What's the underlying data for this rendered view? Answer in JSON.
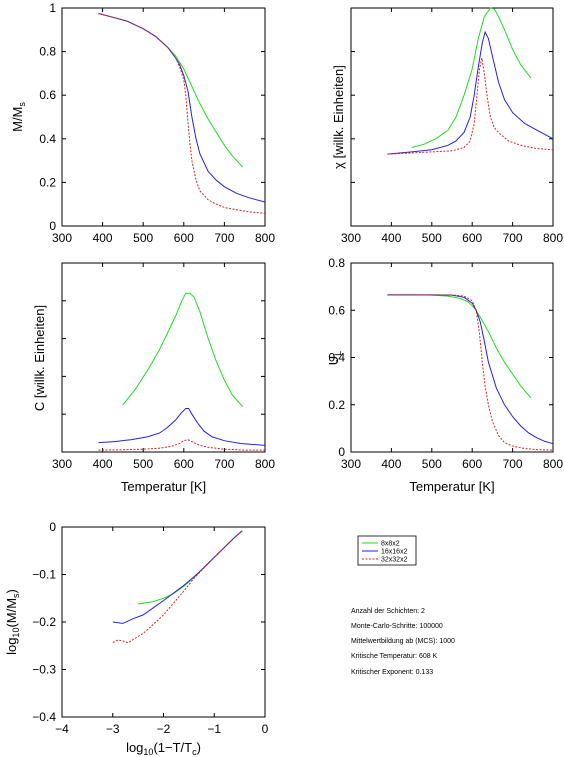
{
  "legend": {
    "entries": [
      {
        "label": "8x8x2",
        "color": "#22dd22",
        "dash": "none"
      },
      {
        "label": "16x16x2",
        "color": "#2222dd",
        "dash": "none"
      },
      {
        "label": "32x32x2",
        "color": "#dd2222",
        "dash": "2,1.5"
      }
    ]
  },
  "info": [
    "Anzahl der Schichten: 2",
    "Monte-Carlo-Schritte: 100000",
    "Mittelwertbildung ab (MCS): 1000",
    "Kritische Temperatur: 608 K",
    "Kritischer Exponent: 0.133"
  ],
  "chart_data": [
    {
      "type": "line",
      "ylabel": "M/M",
      "ylabel_sub": "s",
      "xlabel": "",
      "xlim": [
        300,
        800
      ],
      "ylim": [
        0,
        1
      ],
      "xticks": [
        300,
        400,
        500,
        600,
        700,
        800
      ],
      "yticks": [
        0,
        0.2,
        0.4,
        0.6,
        0.8,
        1
      ],
      "ytick_labels": [
        "0",
        "0.2",
        "0.4",
        "0.6",
        "0.8",
        "1"
      ],
      "series": [
        {
          "x": [
            390,
            420,
            460,
            500,
            530,
            560,
            580,
            600,
            620,
            640,
            660,
            680,
            700,
            720,
            745
          ],
          "y": [
            0.975,
            0.96,
            0.94,
            0.905,
            0.87,
            0.82,
            0.78,
            0.72,
            0.64,
            0.56,
            0.49,
            0.43,
            0.37,
            0.32,
            0.27
          ]
        },
        {
          "x": [
            390,
            420,
            460,
            500,
            530,
            560,
            580,
            590,
            600,
            610,
            620,
            630,
            640,
            660,
            680,
            700,
            730,
            760,
            800
          ],
          "y": [
            0.975,
            0.96,
            0.94,
            0.905,
            0.87,
            0.82,
            0.77,
            0.74,
            0.69,
            0.62,
            0.5,
            0.4,
            0.33,
            0.25,
            0.21,
            0.18,
            0.15,
            0.13,
            0.11
          ]
        },
        {
          "x": [
            390,
            420,
            460,
            500,
            530,
            560,
            580,
            590,
            600,
            605,
            610,
            615,
            620,
            630,
            640,
            660,
            680,
            700,
            730,
            760,
            800
          ],
          "y": [
            0.975,
            0.96,
            0.94,
            0.905,
            0.87,
            0.82,
            0.77,
            0.73,
            0.67,
            0.6,
            0.48,
            0.38,
            0.3,
            0.21,
            0.16,
            0.12,
            0.1,
            0.085,
            0.075,
            0.065,
            0.058
          ]
        }
      ]
    },
    {
      "type": "line",
      "ylabel": "χ [willk. Einheiten]",
      "xlabel": "",
      "xlim": [
        300,
        800
      ],
      "ylim": [
        0,
        1
      ],
      "xticks": [
        300,
        400,
        500,
        600,
        700,
        800
      ],
      "yticks": [
        0,
        0.2,
        0.4,
        0.6,
        0.8,
        1
      ],
      "ytick_labels": [
        "",
        "",
        "",
        "",
        "",
        ""
      ],
      "series": [
        {
          "x": [
            450,
            480,
            510,
            540,
            560,
            580,
            600,
            615,
            630,
            645,
            655,
            665,
            680,
            700,
            720,
            745
          ],
          "y": [
            0.36,
            0.375,
            0.4,
            0.44,
            0.5,
            0.6,
            0.72,
            0.86,
            0.96,
            1.0,
            0.995,
            0.96,
            0.9,
            0.81,
            0.74,
            0.68
          ]
        },
        {
          "x": [
            390,
            450,
            500,
            540,
            560,
            580,
            595,
            605,
            615,
            625,
            632,
            640,
            650,
            665,
            680,
            700,
            730,
            760,
            800
          ],
          "y": [
            0.33,
            0.34,
            0.35,
            0.37,
            0.39,
            0.43,
            0.5,
            0.6,
            0.73,
            0.84,
            0.89,
            0.86,
            0.78,
            0.66,
            0.58,
            0.52,
            0.47,
            0.44,
            0.4
          ]
        },
        {
          "x": [
            390,
            450,
            500,
            550,
            580,
            595,
            605,
            612,
            618,
            624,
            630,
            638,
            645,
            655,
            670,
            690,
            720,
            760,
            800
          ],
          "y": [
            0.33,
            0.335,
            0.34,
            0.345,
            0.36,
            0.39,
            0.47,
            0.6,
            0.72,
            0.77,
            0.7,
            0.58,
            0.5,
            0.45,
            0.42,
            0.39,
            0.37,
            0.355,
            0.35
          ]
        }
      ]
    },
    {
      "type": "line",
      "ylabel": "C [willk. Einheiten]",
      "xlabel": "Temperatur [K]",
      "xlim": [
        300,
        800
      ],
      "ylim": [
        0,
        1
      ],
      "xticks": [
        300,
        400,
        500,
        600,
        700,
        800
      ],
      "yticks": [
        0,
        0.2,
        0.4,
        0.6,
        0.8,
        1
      ],
      "ytick_labels": [
        "",
        "",
        "",
        "",
        "",
        ""
      ],
      "series": [
        {
          "x": [
            450,
            480,
            510,
            540,
            560,
            580,
            595,
            605,
            615,
            625,
            640,
            660,
            680,
            700,
            720,
            745
          ],
          "y": [
            0.25,
            0.33,
            0.43,
            0.54,
            0.63,
            0.72,
            0.8,
            0.84,
            0.84,
            0.82,
            0.74,
            0.6,
            0.48,
            0.38,
            0.3,
            0.24
          ]
        },
        {
          "x": [
            390,
            430,
            470,
            510,
            540,
            560,
            580,
            595,
            605,
            612,
            620,
            635,
            650,
            670,
            700,
            740,
            800
          ],
          "y": [
            0.05,
            0.055,
            0.065,
            0.08,
            0.1,
            0.13,
            0.17,
            0.21,
            0.23,
            0.23,
            0.2,
            0.15,
            0.11,
            0.08,
            0.06,
            0.045,
            0.035
          ]
        },
        {
          "x": [
            390,
            450,
            500,
            540,
            570,
            590,
            600,
            610,
            620,
            640,
            660,
            700,
            750,
            800
          ],
          "y": [
            0.01,
            0.012,
            0.015,
            0.02,
            0.03,
            0.045,
            0.06,
            0.065,
            0.055,
            0.035,
            0.025,
            0.015,
            0.01,
            0.01
          ]
        }
      ]
    },
    {
      "type": "line",
      "ylabel": "U",
      "ylabel_sub": "L",
      "xlabel": "Temperatur [K]",
      "xlim": [
        300,
        800
      ],
      "ylim": [
        0,
        0.8
      ],
      "xticks": [
        300,
        400,
        500,
        600,
        700,
        800
      ],
      "yticks": [
        0,
        0.2,
        0.4,
        0.6,
        0.8
      ],
      "ytick_labels": [
        "0",
        "0.2",
        "0.4",
        "0.6",
        "0.8"
      ],
      "series": [
        {
          "x": [
            390,
            450,
            500,
            540,
            570,
            590,
            605,
            620,
            640,
            660,
            680,
            700,
            720,
            745
          ],
          "y": [
            0.665,
            0.665,
            0.664,
            0.66,
            0.65,
            0.635,
            0.61,
            0.57,
            0.51,
            0.44,
            0.38,
            0.33,
            0.28,
            0.23
          ]
        },
        {
          "x": [
            390,
            450,
            500,
            550,
            580,
            600,
            610,
            620,
            630,
            640,
            660,
            680,
            700,
            720,
            740,
            760,
            780,
            800
          ],
          "y": [
            0.665,
            0.665,
            0.665,
            0.664,
            0.655,
            0.63,
            0.6,
            0.55,
            0.47,
            0.38,
            0.27,
            0.2,
            0.15,
            0.11,
            0.08,
            0.06,
            0.045,
            0.035
          ]
        },
        {
          "x": [
            390,
            450,
            500,
            550,
            580,
            600,
            610,
            618,
            625,
            632,
            640,
            650,
            665,
            680,
            700,
            730,
            760,
            800
          ],
          "y": [
            0.665,
            0.665,
            0.665,
            0.665,
            0.66,
            0.64,
            0.6,
            0.5,
            0.38,
            0.28,
            0.2,
            0.13,
            0.07,
            0.04,
            0.025,
            0.015,
            0.01,
            0.008
          ]
        }
      ]
    },
    {
      "type": "line",
      "ylabel": "log10(M/Ms)",
      "xlabel": "log10(1-T/Tc)",
      "xlim": [
        -4,
        0
      ],
      "ylim": [
        -0.4,
        0
      ],
      "xticks": [
        -4,
        -3,
        -2,
        -1,
        0
      ],
      "xtick_labels": [
        "−4",
        "−3",
        "−2",
        "−1",
        "0"
      ],
      "yticks": [
        -0.4,
        -0.3,
        -0.2,
        -0.1,
        0
      ],
      "ytick_labels": [
        "−0.4",
        "−0.3",
        "−0.2",
        "−0.1",
        "0"
      ],
      "series": [
        {
          "x": [
            -2.5,
            -2.2,
            -2.0,
            -1.8,
            -1.6,
            -1.4,
            -1.2,
            -1.0,
            -0.8,
            -0.6,
            -0.45
          ],
          "y": [
            -0.162,
            -0.157,
            -0.15,
            -0.14,
            -0.125,
            -0.106,
            -0.085,
            -0.064,
            -0.043,
            -0.022,
            -0.008
          ]
        },
        {
          "x": [
            -3.0,
            -2.8,
            -2.6,
            -2.4,
            -2.2,
            -2.0,
            -1.8,
            -1.6,
            -1.4,
            -1.2,
            -1.0,
            -0.8,
            -0.6,
            -0.45
          ],
          "y": [
            -0.2,
            -0.203,
            -0.193,
            -0.185,
            -0.17,
            -0.155,
            -0.139,
            -0.123,
            -0.105,
            -0.085,
            -0.064,
            -0.043,
            -0.022,
            -0.008
          ]
        },
        {
          "x": [
            -3.0,
            -2.9,
            -2.8,
            -2.7,
            -2.6,
            -2.4,
            -2.2,
            -2.0,
            -1.8,
            -1.6,
            -1.4,
            -1.2,
            -1.0,
            -0.8,
            -0.6,
            -0.45
          ],
          "y": [
            -0.243,
            -0.238,
            -0.24,
            -0.244,
            -0.237,
            -0.224,
            -0.205,
            -0.185,
            -0.16,
            -0.135,
            -0.108,
            -0.086,
            -0.064,
            -0.043,
            -0.022,
            -0.008
          ]
        }
      ]
    }
  ]
}
